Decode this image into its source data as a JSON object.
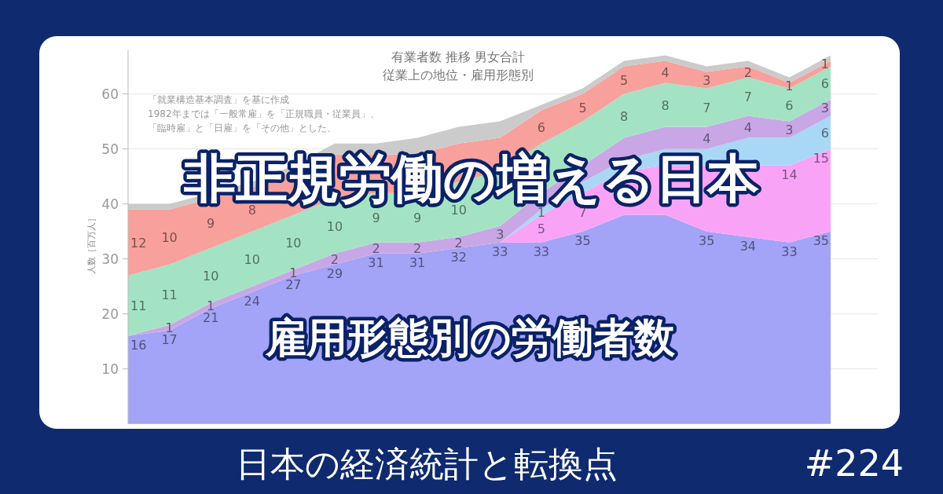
{
  "chart_data": {
    "type": "area",
    "stacked": true,
    "title": "有業者数 推移 男女合計",
    "subtitle": "従業上の地位・雇用形態別",
    "ylabel": "人数［百万人］",
    "categories": [
      null,
      null,
      null,
      null,
      null,
      null,
      null,
      null,
      null,
      null,
      null,
      null,
      null,
      null,
      null,
      null,
      null,
      null
    ],
    "ylim": [
      0,
      68
    ],
    "yticks": [
      10,
      20,
      30,
      40,
      50,
      60
    ],
    "grid": "y",
    "series": [
      {
        "color": "#a3a3f7",
        "values": [
          16,
          17,
          21,
          24,
          27,
          29,
          31,
          31,
          32,
          33,
          33,
          35,
          38,
          38,
          35,
          34,
          33,
          35
        ],
        "value_labels": [
          "16",
          "17",
          "21",
          "24",
          "27",
          "29",
          "31",
          "31",
          "32",
          "33",
          "33",
          "35",
          null,
          null,
          "35",
          "34",
          "33",
          "35"
        ]
      },
      {
        "color": "#f9a3f7",
        "values": [
          0,
          0,
          0,
          0,
          0,
          0,
          0,
          0,
          0,
          0,
          5,
          7,
          8,
          9,
          12,
          13,
          14,
          15
        ],
        "value_labels": [
          null,
          null,
          null,
          null,
          null,
          null,
          null,
          null,
          null,
          null,
          "5",
          "7",
          null,
          null,
          null,
          null,
          "14",
          "15"
        ]
      },
      {
        "color": "#a8d8f5",
        "values": [
          0,
          0,
          0,
          0,
          0,
          0,
          0,
          0,
          0,
          0,
          1,
          2,
          2,
          3,
          3,
          5,
          5,
          6
        ],
        "value_labels": [
          null,
          null,
          null,
          null,
          null,
          null,
          null,
          null,
          null,
          null,
          "1",
          null,
          null,
          null,
          null,
          null,
          null,
          "6"
        ]
      },
      {
        "color": "#c9a7e6",
        "values": [
          0,
          1,
          1,
          1,
          1,
          2,
          2,
          2,
          2,
          3,
          3,
          3,
          4,
          4,
          4,
          4,
          3,
          3
        ],
        "value_labels": [
          null,
          "1",
          "1",
          null,
          "1",
          "2",
          "2",
          "2",
          "2",
          "3",
          null,
          null,
          null,
          null,
          "4",
          "4",
          "3",
          "3"
        ]
      },
      {
        "color": "#a3e3c3",
        "values": [
          11,
          11,
          10,
          10,
          10,
          10,
          9,
          9,
          10,
          10,
          9,
          8,
          8,
          8,
          7,
          7,
          6,
          6
        ],
        "value_labels": [
          "11",
          "11",
          "10",
          "10",
          "10",
          "10",
          "9",
          "9",
          "10",
          null,
          null,
          null,
          "8",
          "8",
          "7",
          "7",
          "6",
          "6"
        ]
      },
      {
        "color": "#f7a09c",
        "values": [
          12,
          10,
          9,
          8,
          8,
          8,
          7,
          7,
          7,
          6,
          6,
          5,
          5,
          4,
          3,
          2,
          1,
          1
        ],
        "value_labels": [
          "12",
          "10",
          "9",
          "8",
          null,
          null,
          null,
          null,
          null,
          null,
          "6",
          "5",
          "5",
          "4",
          "3",
          "2",
          "1",
          "1"
        ]
      },
      {
        "color": "#cbcbcb",
        "values": [
          1,
          1,
          1,
          1,
          1,
          2,
          2,
          3,
          3,
          3,
          1,
          1,
          1,
          1,
          1,
          1,
          1,
          1
        ]
      }
    ],
    "annotations": [
      "「就業構造基本調査」を基に作成",
      "1982年までは「一般常雇」を「正規職員・従業員」、",
      "「臨時雇」と「日雇」を「その他」とした、",
      "非正規労働の増える日本",
      "雇用形態別の労働者数",
      "日本の経済統計と転換点",
      "#224"
    ]
  }
}
